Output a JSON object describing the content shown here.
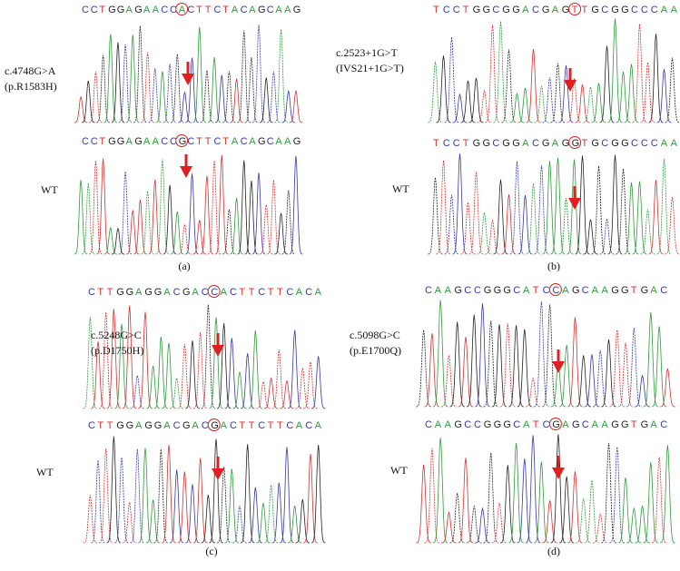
{
  "panels": [
    {
      "caption": "(a)",
      "mutant": {
        "label_lines": [
          "c.4748G>A",
          "(p.R1583H)"
        ],
        "sequence": {
          "before": "CCTGGAGAACC",
          "circled": "A",
          "after": "CTTCTACAGCAAG"
        }
      },
      "wildtype": {
        "label_lines": [
          "WT"
        ],
        "sequence": {
          "before": "CCTGGAGAACC",
          "circled": "G",
          "after": "CTTCTACAGCAAG"
        }
      }
    },
    {
      "caption": "(b)",
      "mutant": {
        "label_lines": [
          "c.2523+1G>T",
          "(IVS21+1G>T)"
        ],
        "sequence": {
          "before": "TCCTGGCGGACGAG",
          "circled": "T",
          "after": "TGCGGCCCAA"
        }
      },
      "wildtype": {
        "label_lines": [
          "WT"
        ],
        "sequence": {
          "before": "TCCTGGCGGACGAG",
          "circled": "G",
          "after": "TGCGGCCCAA"
        }
      }
    },
    {
      "caption": "(c)",
      "mutant": {
        "label_lines": [
          "c.5248G>C",
          "(p.D1750H)"
        ],
        "sequence": {
          "before": "CTTGGAGGACGAC",
          "circled": "C",
          "after": "ACTTCTTCACA"
        }
      },
      "wildtype": {
        "label_lines": [
          "WT"
        ],
        "sequence": {
          "before": "CTTGGAGGACGAC",
          "circled": "G",
          "after": "ACTTCTTCACA"
        }
      }
    },
    {
      "caption": "(d)",
      "mutant": {
        "label_lines": [
          "c.5098G>C",
          "(p.E1700Q)"
        ],
        "sequence": {
          "before": "CAAGCCGGGCATC",
          "circled": "C",
          "after": "AGCAAGGTGAC"
        }
      },
      "wildtype": {
        "label_lines": [
          "WT"
        ],
        "sequence": {
          "before": "CAAGCCGGGCATC",
          "circled": "G",
          "after": "AGCAAGGTGAC"
        }
      }
    }
  ]
}
